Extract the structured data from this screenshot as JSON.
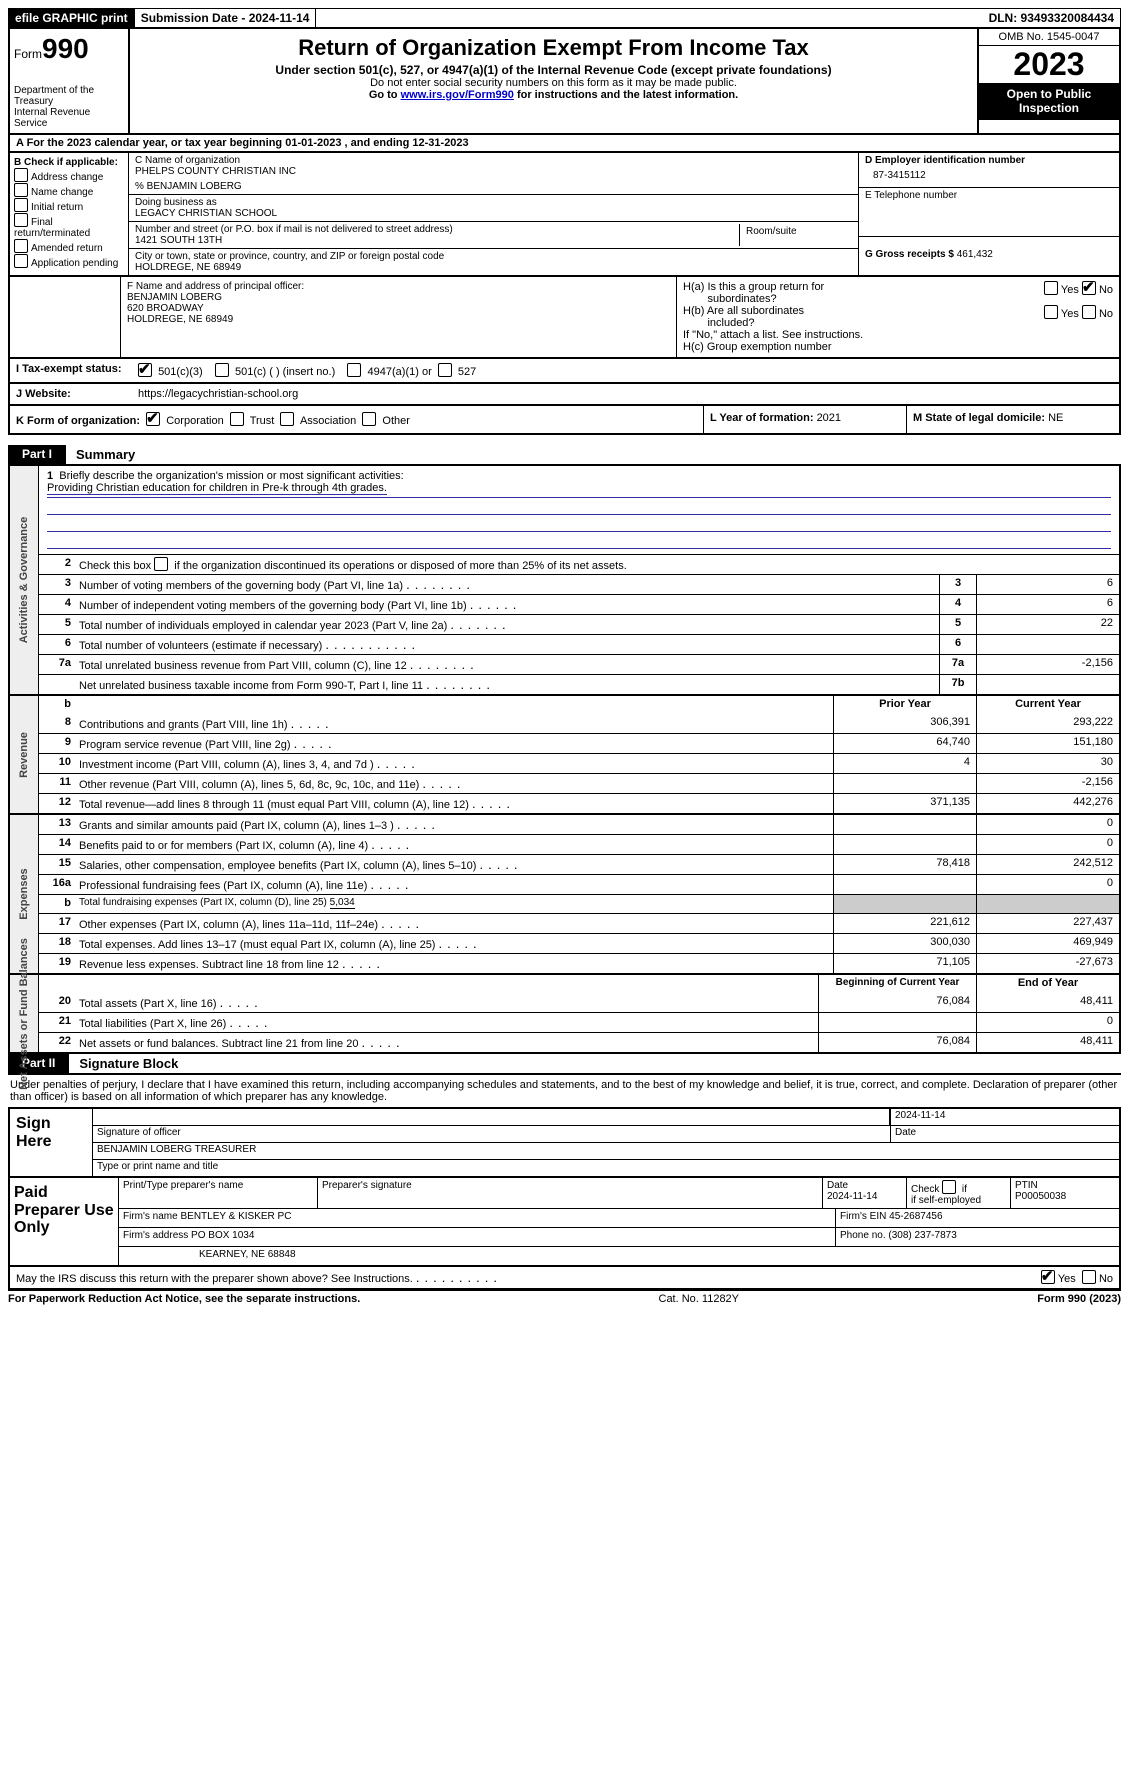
{
  "topbar": {
    "efile": "efile GRAPHIC print",
    "submission": "Submission Date - 2024-11-14",
    "dln": "DLN: 93493320084434"
  },
  "header": {
    "form_word": "Form",
    "form_num": "990",
    "title": "Return of Organization Exempt From Income Tax",
    "subtitle": "Under section 501(c), 527, or 4947(a)(1) of the Internal Revenue Code (except private foundations)",
    "ssn_warn": "Do not enter social security numbers on this form as it may be made public.",
    "goto_pre": "Go to ",
    "goto_link": "www.irs.gov/Form990",
    "goto_post": " for instructions and the latest information.",
    "dept": "Department of the Treasury",
    "irs": "Internal Revenue Service",
    "omb": "OMB No. 1545-0047",
    "year": "2023",
    "inspect1": "Open to Public",
    "inspect2": "Inspection"
  },
  "row_a": {
    "pre": "A For the 2023 calendar year, or tax year beginning ",
    "begin": "01-01-2023",
    "mid": " , and ending ",
    "end": "12-31-2023"
  },
  "col_b": {
    "title": "B Check if applicable:",
    "items": [
      "Address change",
      "Name change",
      "Initial return",
      "Final return/terminated",
      "Amended return",
      "Application pending"
    ]
  },
  "col_c": {
    "name_lab": "C Name of organization",
    "name": "PHELPS COUNTY CHRISTIAN INC",
    "co": "% BENJAMIN LOBERG",
    "dba_lab": "Doing business as",
    "dba": "LEGACY CHRISTIAN SCHOOL",
    "street_lab": "Number and street (or P.O. box if mail is not delivered to street address)",
    "street": "1421 SOUTH 13TH",
    "room_lab": "Room/suite",
    "city_lab": "City or town, state or province, country, and ZIP or foreign postal code",
    "city": "HOLDREGE, NE  68949"
  },
  "col_d": {
    "ein_lab": "D Employer identification number",
    "ein": "87-3415112",
    "phone_lab": "E Telephone number",
    "gross_lab": "G Gross receipts $ ",
    "gross": "461,432"
  },
  "col_f": {
    "lab": "F  Name and address of principal officer:",
    "name": "BENJAMIN LOBERG",
    "street": "620 BROADWAY",
    "city": "HOLDREGE, NE  68949"
  },
  "col_h": {
    "ha1": "H(a)  Is this a group return for",
    "ha2": "subordinates?",
    "hb1": "H(b)  Are all subordinates",
    "hb2": "included?",
    "hb3": "If \"No,\" attach a list. See instructions.",
    "hc": "H(c)  Group exemption number "
  },
  "row_i": {
    "lab": "I    Tax-exempt status:",
    "c3": "501(c)(3)",
    "c": "501(c) (  ) (insert no.)",
    "a1": "4947(a)(1) or",
    "s527": "527"
  },
  "row_j": {
    "lab": "J    Website:",
    "site": "https://legacychristian-school.org"
  },
  "row_k": {
    "k": "K Form of organization:",
    "corp": "Corporation",
    "trust": "Trust",
    "assoc": "Association",
    "other": "Other",
    "l": "L Year of formation: ",
    "l_val": "2021",
    "m": "M State of legal domicile: ",
    "m_val": "NE"
  },
  "part1": {
    "tag": "Part I",
    "title": "Summary"
  },
  "mission": {
    "prompt": "Briefly describe the organization's mission or most significant activities:",
    "text": "Providing Christian education for children in Pre-k through 4th grades."
  },
  "lines_gov": {
    "l2": "Check this box  if the organization discontinued its operations or disposed of more than 25% of its net assets.",
    "l3d": "Number of voting members of the governing body (Part VI, line 1a)",
    "l3v": "6",
    "l4d": "Number of independent voting members of the governing body (Part VI, line 1b)",
    "l4v": "6",
    "l5d": "Total number of individuals employed in calendar year 2023 (Part V, line 2a)",
    "l5v": "22",
    "l6d": "Total number of volunteers (estimate if necessary)",
    "l6v": "",
    "l7ad": "Total unrelated business revenue from Part VIII, column (C), line 12",
    "l7av": "-2,156",
    "l7bd": "Net unrelated business taxable income from Form 990-T, Part I, line 11",
    "l7bv": ""
  },
  "rev_hdr": {
    "prior": "Prior Year",
    "curr": "Current Year"
  },
  "rev": [
    {
      "n": "8",
      "d": "Contributions and grants (Part VIII, line 1h)",
      "p": "306,391",
      "c": "293,222"
    },
    {
      "n": "9",
      "d": "Program service revenue (Part VIII, line 2g)",
      "p": "64,740",
      "c": "151,180"
    },
    {
      "n": "10",
      "d": "Investment income (Part VIII, column (A), lines 3, 4, and 7d )",
      "p": "4",
      "c": "30"
    },
    {
      "n": "11",
      "d": "Other revenue (Part VIII, column (A), lines 5, 6d, 8c, 9c, 10c, and 11e)",
      "p": "",
      "c": "-2,156"
    },
    {
      "n": "12",
      "d": "Total revenue—add lines 8 through 11 (must equal Part VIII, column (A), line 12)",
      "p": "371,135",
      "c": "442,276"
    }
  ],
  "exp": [
    {
      "n": "13",
      "d": "Grants and similar amounts paid (Part IX, column (A), lines 1–3 )",
      "p": "",
      "c": "0"
    },
    {
      "n": "14",
      "d": "Benefits paid to or for members (Part IX, column (A), line 4)",
      "p": "",
      "c": "0"
    },
    {
      "n": "15",
      "d": "Salaries, other compensation, employee benefits (Part IX, column (A), lines 5–10)",
      "p": "78,418",
      "c": "242,512"
    },
    {
      "n": "16a",
      "d": "Professional fundraising fees (Part IX, column (A), line 11e)",
      "p": "",
      "c": "0"
    },
    {
      "n": "b",
      "d": "Total fundraising expenses (Part IX, column (D), line 25) ",
      "bv": "5,034",
      "grey": true
    },
    {
      "n": "17",
      "d": "Other expenses (Part IX, column (A), lines 11a–11d, 11f–24e)",
      "p": "221,612",
      "c": "227,437"
    },
    {
      "n": "18",
      "d": "Total expenses. Add lines 13–17 (must equal Part IX, column (A), line 25)",
      "p": "300,030",
      "c": "469,949"
    },
    {
      "n": "19",
      "d": "Revenue less expenses. Subtract line 18 from line 12",
      "p": "71,105",
      "c": "-27,673"
    }
  ],
  "na_hdr": {
    "begin": "Beginning of Current Year",
    "end": "End of Year"
  },
  "na": [
    {
      "n": "20",
      "d": "Total assets (Part X, line 16)",
      "p": "76,084",
      "c": "48,411"
    },
    {
      "n": "21",
      "d": "Total liabilities (Part X, line 26)",
      "p": "",
      "c": "0"
    },
    {
      "n": "22",
      "d": "Net assets or fund balances. Subtract line 21 from line 20",
      "p": "76,084",
      "c": "48,411"
    }
  ],
  "vlabels": {
    "gov": "Activities & Governance",
    "rev": "Revenue",
    "exp": "Expenses",
    "na": "Net Assets or Fund Balances"
  },
  "part2": {
    "tag": "Part II",
    "title": "Signature Block"
  },
  "sig_intro": "Under penalties of perjury, I declare that I have examined this return, including accompanying schedules and statements, and to the best of my knowledge and belief, it is true, correct, and complete. Declaration of preparer (other than officer) is based on all information of which preparer has any knowledge.",
  "sign": {
    "here": "Sign Here",
    "date": "2024-11-14",
    "sigoff": "Signature of officer",
    "datelab": "Date",
    "officer": "BENJAMIN LOBERG  TREASURER",
    "typeprint": "Type or print name and title"
  },
  "paid": {
    "label": "Paid Preparer Use Only",
    "h1": "Print/Type preparer's name",
    "h2": "Preparer's signature",
    "h3": "Date",
    "h3v": "2024-11-14",
    "h4a": "Check",
    "h4b": "if self-employed",
    "h5": "PTIN",
    "h5v": "P00050038",
    "firm_lab": "Firm's name   ",
    "firm": "BENTLEY & KISKER PC",
    "ein_lab": "Firm's EIN  ",
    "ein": "45-2687456",
    "addr_lab": "Firm's address ",
    "addr1": "PO BOX 1034",
    "addr2": "KEARNEY, NE  68848",
    "phone_lab": "Phone no. ",
    "phone": "(308) 237-7873"
  },
  "discuss": {
    "q": "May the IRS discuss this return with the preparer shown above? See Instructions.",
    "yes": "Yes",
    "no": "No"
  },
  "footer": {
    "left": "For Paperwork Reduction Act Notice, see the separate instructions.",
    "mid": "Cat. No. 11282Y",
    "right_pre": "Form ",
    "right_form": "990",
    "right_post": " (2023)"
  },
  "colors": {
    "black": "#000000",
    "grey": "#cccccc",
    "link": "#0000cc",
    "rule": "#3030a0"
  }
}
